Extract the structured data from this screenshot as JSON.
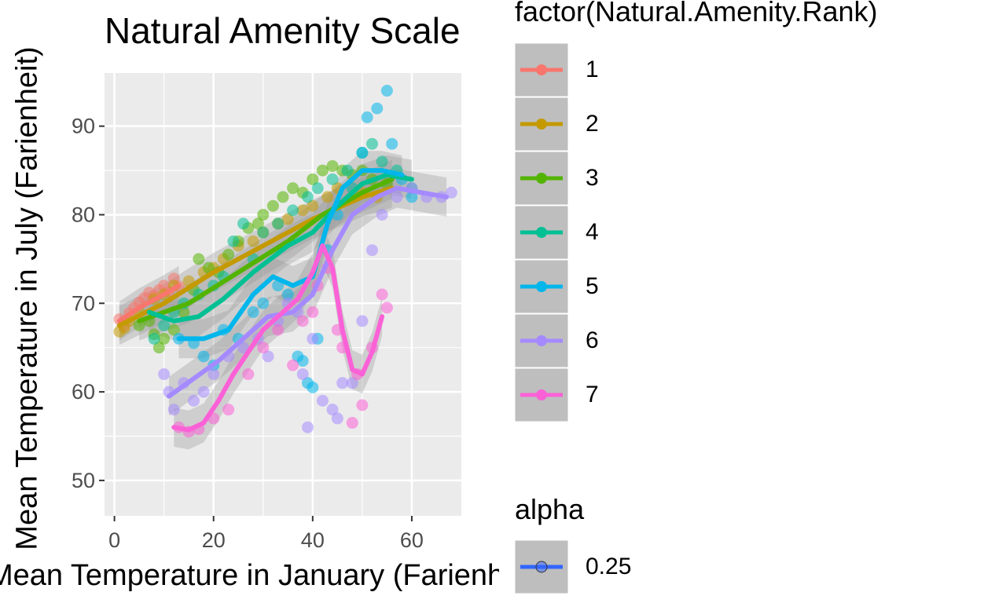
{
  "chart_data": {
    "type": "scatter",
    "title": "Natural Amenity Scale",
    "xlabel": "Mean Temperature in January (Farienheit)",
    "ylabel": "Mean Temperature in July (Farienheit)",
    "xlim": [
      -2,
      70
    ],
    "ylim": [
      46,
      96
    ],
    "x_ticks": [
      "0",
      "20",
      "40",
      "60"
    ],
    "y_ticks": [
      "50",
      "60",
      "70",
      "80",
      "90"
    ],
    "grid": true,
    "smoothing": "loess with confidence band",
    "legend": {
      "placement": "right",
      "color_title": "factor(Natural.Amenity.Rank)",
      "alpha_title": "alpha",
      "alpha_entries": [
        "0.25"
      ]
    },
    "series": [
      {
        "name": "1",
        "color": "#F8766D",
        "points": [
          [
            1,
            68.2
          ],
          [
            2,
            67.5
          ],
          [
            3,
            68.9
          ],
          [
            4,
            69.5
          ],
          [
            5,
            70.1
          ],
          [
            6,
            70.6
          ],
          [
            7,
            71.2
          ],
          [
            8,
            70.8
          ],
          [
            9,
            71.5
          ],
          [
            10,
            72
          ],
          [
            11,
            71.3
          ],
          [
            12,
            72.8
          ],
          [
            13,
            71.9
          ]
        ],
        "smooth": [
          [
            1,
            68
          ],
          [
            5,
            69.5
          ],
          [
            10,
            71
          ],
          [
            13,
            72
          ]
        ]
      },
      {
        "name": "2",
        "color": "#C49A00",
        "points": [
          [
            1,
            66.8
          ],
          [
            2,
            67.2
          ],
          [
            3,
            68
          ],
          [
            5,
            69
          ],
          [
            8,
            70.5
          ],
          [
            10,
            71
          ],
          [
            12,
            72
          ],
          [
            15,
            72.5
          ],
          [
            18,
            73.5
          ],
          [
            20,
            74
          ],
          [
            22,
            75
          ],
          [
            25,
            76.5
          ],
          [
            28,
            77
          ],
          [
            30,
            78
          ],
          [
            33,
            79
          ],
          [
            35,
            79.5
          ],
          [
            38,
            80.5
          ],
          [
            40,
            81
          ],
          [
            43,
            82
          ],
          [
            45,
            83
          ],
          [
            48,
            83
          ],
          [
            50,
            82.5
          ],
          [
            53,
            82
          ]
        ],
        "smooth": [
          [
            1,
            67.5
          ],
          [
            10,
            70
          ],
          [
            20,
            73.5
          ],
          [
            30,
            76.5
          ],
          [
            40,
            79.5
          ],
          [
            50,
            82
          ],
          [
            56,
            83
          ]
        ]
      },
      {
        "name": "3",
        "color": "#53B400",
        "points": [
          [
            5,
            67.5
          ],
          [
            7,
            68
          ],
          [
            8,
            66.5
          ],
          [
            9,
            65
          ],
          [
            10,
            66
          ],
          [
            12,
            67
          ],
          [
            14,
            69
          ],
          [
            16,
            71.5
          ],
          [
            17,
            75
          ],
          [
            19,
            74
          ],
          [
            21,
            73.5
          ],
          [
            23,
            75.5
          ],
          [
            25,
            77
          ],
          [
            27,
            78.5
          ],
          [
            29,
            79
          ],
          [
            30,
            80
          ],
          [
            32,
            81
          ],
          [
            34,
            82
          ],
          [
            36,
            83
          ],
          [
            38,
            82.5
          ],
          [
            40,
            84
          ],
          [
            42,
            85
          ],
          [
            44,
            85.5
          ],
          [
            46,
            85
          ],
          [
            48,
            84.5
          ],
          [
            50,
            85
          ],
          [
            52,
            84
          ],
          [
            55,
            83.5
          ]
        ],
        "smooth": [
          [
            5,
            68
          ],
          [
            15,
            70
          ],
          [
            25,
            73.5
          ],
          [
            35,
            77
          ],
          [
            42,
            80
          ],
          [
            50,
            82.5
          ],
          [
            56,
            84
          ]
        ]
      },
      {
        "name": "4",
        "color": "#00C094",
        "points": [
          [
            8,
            66
          ],
          [
            10,
            67.5
          ],
          [
            12,
            69
          ],
          [
            14,
            70
          ],
          [
            17,
            71
          ],
          [
            20,
            72
          ],
          [
            22,
            73
          ],
          [
            24,
            77
          ],
          [
            26,
            79
          ],
          [
            28,
            75
          ],
          [
            30,
            78
          ],
          [
            33,
            79
          ],
          [
            36,
            80.5
          ],
          [
            39,
            82
          ],
          [
            41,
            83
          ],
          [
            44,
            84
          ],
          [
            47,
            85
          ],
          [
            50,
            87
          ],
          [
            52,
            88
          ],
          [
            54,
            86
          ],
          [
            57,
            85
          ],
          [
            60,
            83
          ]
        ],
        "smooth": [
          [
            7,
            69
          ],
          [
            12,
            68
          ],
          [
            17,
            68.5
          ],
          [
            22,
            70.5
          ],
          [
            28,
            73.5
          ],
          [
            35,
            76.5
          ],
          [
            40,
            78
          ],
          [
            45,
            81
          ],
          [
            50,
            83.5
          ],
          [
            55,
            84.5
          ],
          [
            60,
            84
          ]
        ]
      },
      {
        "name": "5",
        "color": "#00B6EB",
        "points": [
          [
            13,
            66
          ],
          [
            16,
            65.5
          ],
          [
            18,
            64
          ],
          [
            20,
            63
          ],
          [
            22,
            67
          ],
          [
            25,
            66
          ],
          [
            28,
            69
          ],
          [
            30,
            70
          ],
          [
            33,
            72
          ],
          [
            35,
            71
          ],
          [
            37,
            64
          ],
          [
            38,
            63.5
          ],
          [
            39,
            61
          ],
          [
            40,
            60.5
          ],
          [
            41,
            66
          ],
          [
            43,
            76
          ],
          [
            45,
            80
          ],
          [
            48,
            83
          ],
          [
            50,
            87
          ],
          [
            51,
            91
          ],
          [
            53,
            92
          ],
          [
            55,
            94
          ],
          [
            56,
            88
          ],
          [
            58,
            84
          ],
          [
            60,
            82
          ]
        ],
        "smooth": [
          [
            13,
            66
          ],
          [
            18,
            66
          ],
          [
            23,
            67
          ],
          [
            28,
            71
          ],
          [
            32,
            73
          ],
          [
            36,
            72
          ],
          [
            40,
            73
          ],
          [
            43,
            79
          ],
          [
            46,
            83
          ],
          [
            50,
            85
          ],
          [
            54,
            85
          ],
          [
            58,
            84.5
          ]
        ]
      },
      {
        "name": "6",
        "color": "#A58AFF",
        "points": [
          [
            10,
            62
          ],
          [
            11,
            60
          ],
          [
            12,
            58
          ],
          [
            14,
            61
          ],
          [
            16,
            59
          ],
          [
            18,
            60
          ],
          [
            20,
            62
          ],
          [
            23,
            64
          ],
          [
            26,
            65
          ],
          [
            29,
            66
          ],
          [
            31,
            64
          ],
          [
            33,
            68
          ],
          [
            35,
            70
          ],
          [
            37,
            69
          ],
          [
            38,
            62
          ],
          [
            39,
            56
          ],
          [
            40,
            66
          ],
          [
            42,
            59
          ],
          [
            44,
            58
          ],
          [
            45,
            57
          ],
          [
            46,
            61
          ],
          [
            48,
            61
          ],
          [
            50,
            68
          ],
          [
            52,
            76
          ],
          [
            54,
            80
          ],
          [
            57,
            82
          ],
          [
            60,
            83
          ],
          [
            63,
            82
          ],
          [
            66,
            82
          ],
          [
            68,
            82.5
          ]
        ],
        "smooth": [
          [
            11,
            59.5
          ],
          [
            16,
            61.5
          ],
          [
            21,
            63.5
          ],
          [
            26,
            66
          ],
          [
            31,
            68.5
          ],
          [
            36,
            69
          ],
          [
            40,
            71
          ],
          [
            44,
            76
          ],
          [
            48,
            80
          ],
          [
            53,
            82
          ],
          [
            57,
            83
          ],
          [
            62,
            82.5
          ],
          [
            67,
            82
          ]
        ]
      },
      {
        "name": "7",
        "color": "#FB61D7",
        "points": [
          [
            13,
            56
          ],
          [
            15,
            55.5
          ],
          [
            17,
            55.8
          ],
          [
            20,
            57
          ],
          [
            23,
            58
          ],
          [
            27,
            62
          ],
          [
            30,
            65
          ],
          [
            33,
            67
          ],
          [
            36,
            63
          ],
          [
            38,
            68
          ],
          [
            40,
            69
          ],
          [
            41,
            72
          ],
          [
            43,
            74
          ],
          [
            45,
            67
          ],
          [
            46,
            65
          ],
          [
            48,
            56.5
          ],
          [
            49,
            62
          ],
          [
            50,
            58.5
          ],
          [
            52,
            65
          ],
          [
            54,
            71
          ],
          [
            55,
            69.5
          ]
        ],
        "smooth": [
          [
            12,
            56
          ],
          [
            15,
            55.7
          ],
          [
            18,
            56.5
          ],
          [
            21,
            59
          ],
          [
            24,
            62
          ],
          [
            27,
            64.5
          ],
          [
            30,
            67
          ],
          [
            34,
            69
          ],
          [
            37,
            70.5
          ],
          [
            40,
            73.5
          ],
          [
            42,
            76.5
          ],
          [
            44,
            74
          ],
          [
            46,
            67
          ],
          [
            48,
            62.5
          ],
          [
            50,
            62
          ],
          [
            52,
            64.5
          ],
          [
            54,
            68.5
          ]
        ]
      }
    ]
  }
}
